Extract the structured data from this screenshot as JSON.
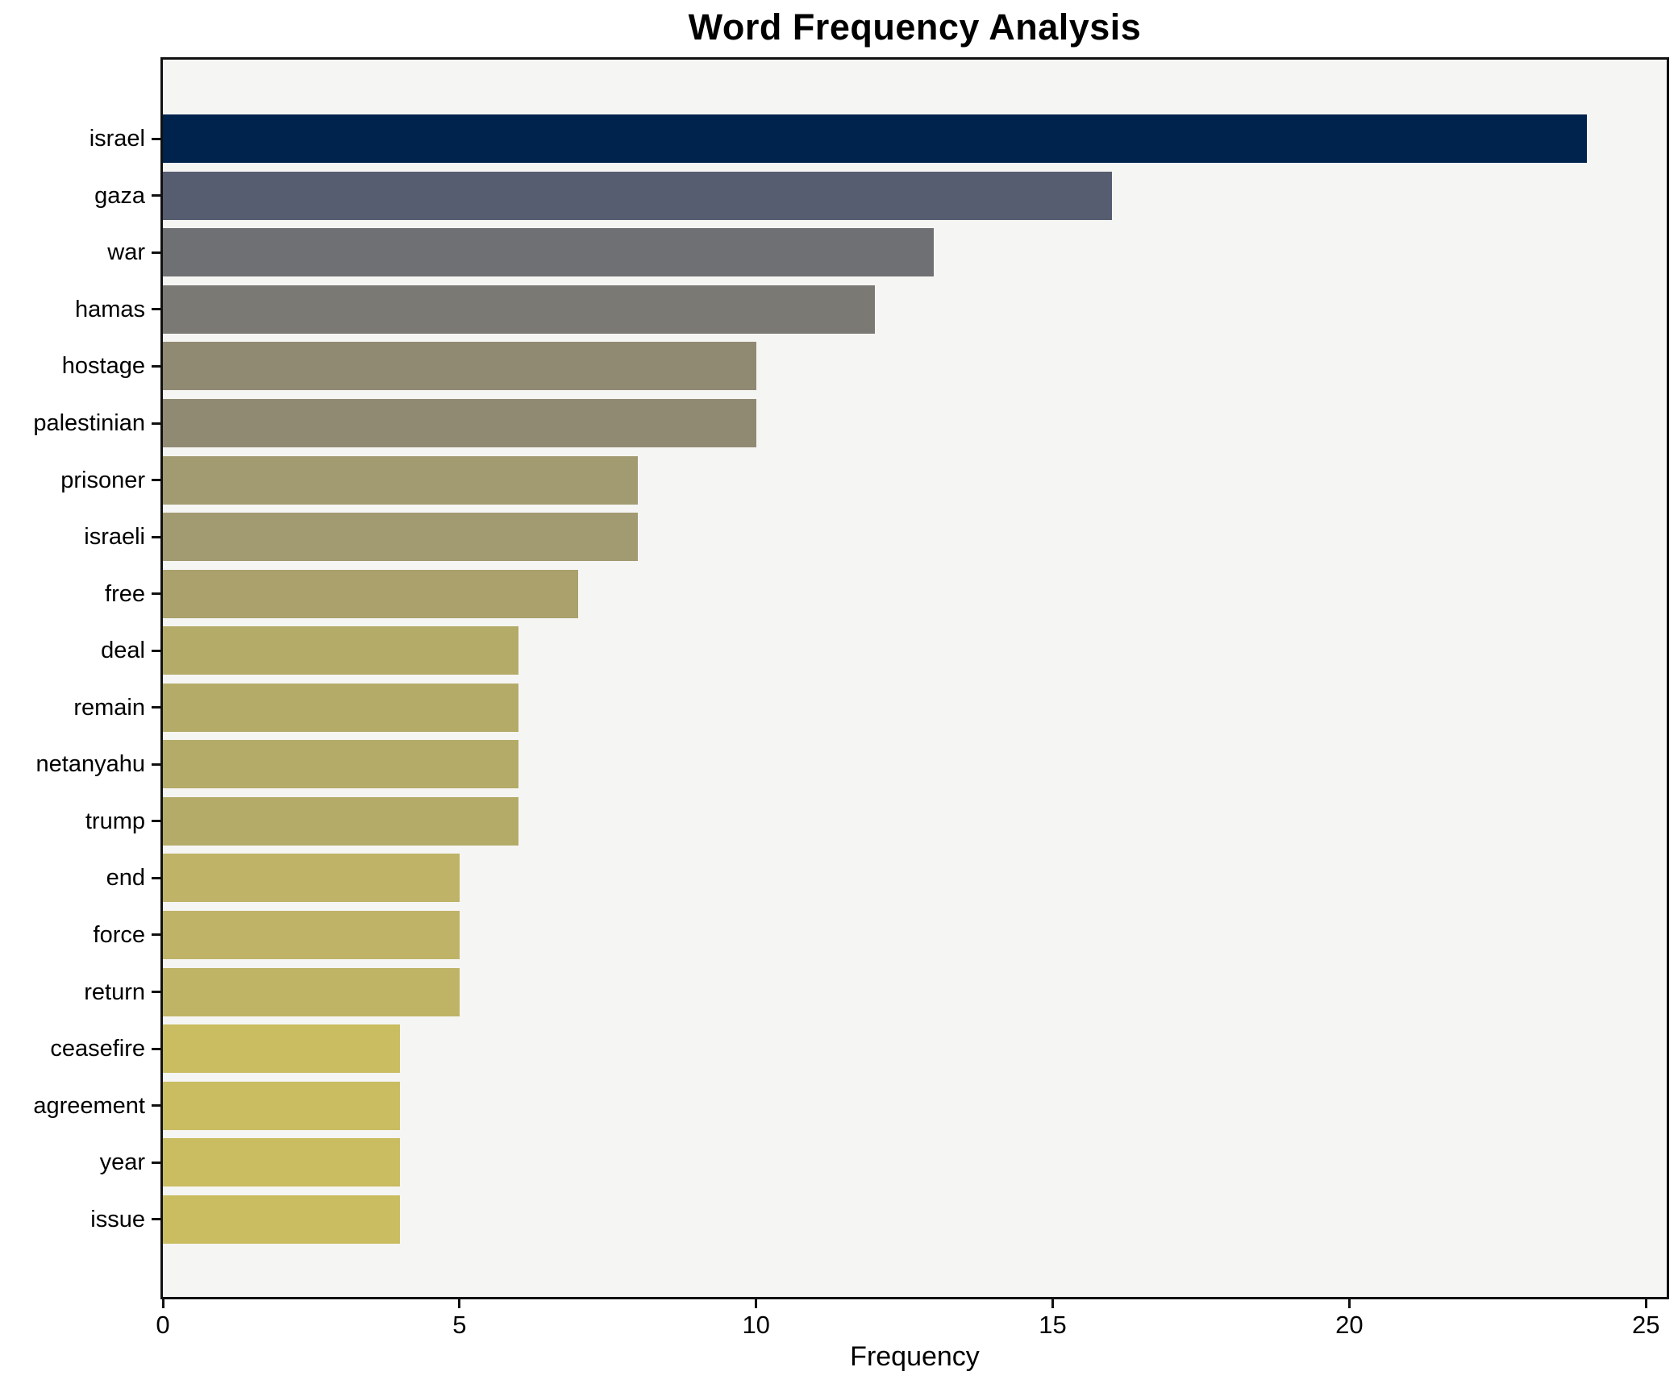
{
  "chart_data": {
    "type": "bar",
    "orientation": "horizontal",
    "title": "Word Frequency Analysis",
    "xlabel": "Frequency",
    "ylabel": "",
    "categories": [
      "israel",
      "gaza",
      "war",
      "hamas",
      "hostage",
      "palestinian",
      "prisoner",
      "israeli",
      "free",
      "deal",
      "remain",
      "netanyahu",
      "trump",
      "end",
      "force",
      "return",
      "ceasefire",
      "agreement",
      "year",
      "issue"
    ],
    "values": [
      24,
      16,
      13,
      12,
      10,
      10,
      8,
      8,
      7,
      6,
      6,
      6,
      6,
      5,
      5,
      5,
      4,
      4,
      4,
      4
    ],
    "bar_colors": [
      "#00234d",
      "#575d70",
      "#6f7073",
      "#7a7974",
      "#918a73",
      "#918a73",
      "#a29a71",
      "#a29a71",
      "#aaa16c",
      "#b4ab68",
      "#b4ab68",
      "#b4ab68",
      "#b4ab68",
      "#beb366",
      "#beb366",
      "#bfb465",
      "#c9bc61",
      "#c9bc61",
      "#c9bc61",
      "#c9bc61"
    ],
    "xlim": [
      0,
      25
    ],
    "xticks": [
      0,
      5,
      10,
      15,
      20,
      25
    ],
    "grid": false,
    "legend": null,
    "plot_background": "#f5f5f3",
    "figure_background": "#ffffff",
    "spine_color": "#111111",
    "text_color": "#000000"
  }
}
